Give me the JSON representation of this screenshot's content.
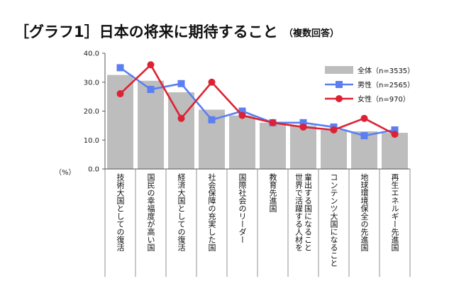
{
  "chart_data": {
    "type": "bar",
    "title": "［グラフ1］日本の将来に期待すること",
    "subtitle": "（複数回答）",
    "ylabel": "（%）",
    "ylim": [
      0,
      40
    ],
    "yticks": [
      "0.0",
      "10.0",
      "20.0",
      "30.0",
      "40.0"
    ],
    "grid": false,
    "legend": "top-right",
    "categories": [
      "技術大国としての復活",
      "国民の幸福度が高い国",
      "経済大国としての復活",
      "社会保障の充実した国",
      "国際社会のリーダー",
      "教育先進国",
      "輩出する国になること|世界で活躍する人材を",
      "コンテンツ大国になること",
      "地球環境保全の先進国",
      "再生エネルギー先進国"
    ],
    "series": [
      {
        "name": "全体（n=3535）",
        "kind": "bar",
        "color": "#bdbdbd",
        "values": [
          32.5,
          30.5,
          26.5,
          20.5,
          18.5,
          16.0,
          15.0,
          13.5,
          13.0,
          12.5
        ]
      },
      {
        "name": "男性（n=2565）",
        "kind": "line",
        "color": "#5b7ff0",
        "values": [
          35.0,
          27.5,
          29.5,
          17.0,
          20.0,
          16.0,
          16.0,
          14.5,
          11.5,
          13.5
        ]
      },
      {
        "name": "女性（n=970）",
        "kind": "line",
        "color": "#dd2233",
        "values": [
          26.0,
          36.0,
          17.5,
          30.0,
          18.5,
          16.0,
          14.5,
          13.5,
          17.5,
          12.0
        ]
      }
    ]
  }
}
